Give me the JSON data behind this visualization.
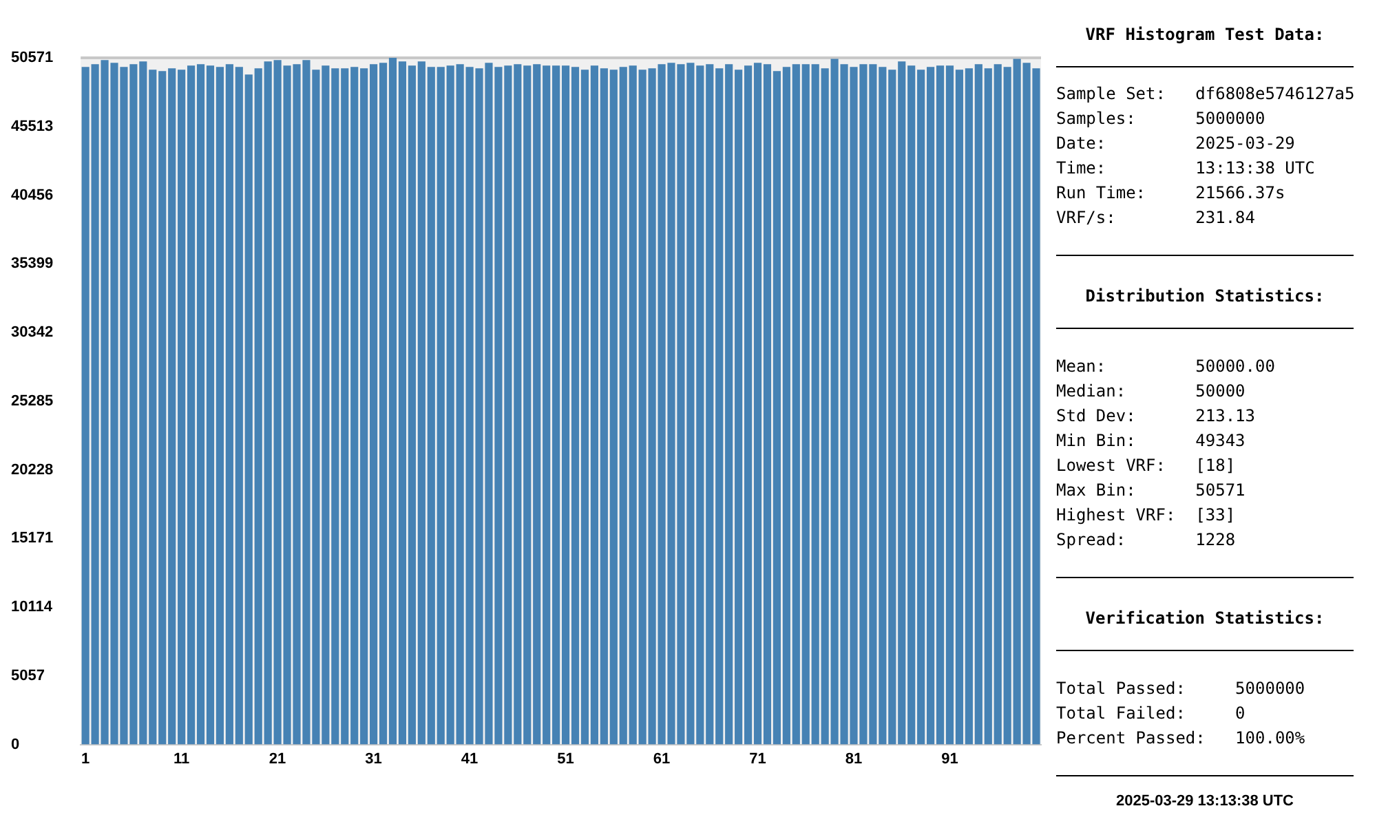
{
  "chart_data": {
    "type": "bar",
    "title": "VRF Histogram Test Data:",
    "categories": [
      "1",
      null,
      null,
      null,
      null,
      null,
      null,
      null,
      null,
      null,
      "11",
      null,
      null,
      null,
      null,
      null,
      null,
      null,
      null,
      null,
      "21",
      null,
      null,
      null,
      null,
      null,
      null,
      null,
      null,
      null,
      "31",
      null,
      null,
      null,
      null,
      null,
      null,
      null,
      null,
      null,
      "41",
      null,
      null,
      null,
      null,
      null,
      null,
      null,
      null,
      null,
      "51",
      null,
      null,
      null,
      null,
      null,
      null,
      null,
      null,
      null,
      "61",
      null,
      null,
      null,
      null,
      null,
      null,
      null,
      null,
      null,
      "71",
      null,
      null,
      null,
      null,
      null,
      null,
      null,
      null,
      null,
      "81",
      null,
      null,
      null,
      null,
      null,
      null,
      null,
      null,
      null,
      "91",
      null,
      null,
      null,
      null,
      null,
      null,
      null,
      null,
      null
    ],
    "values": [
      49900,
      50100,
      50400,
      50200,
      49900,
      50100,
      50300,
      49700,
      49600,
      49800,
      49700,
      50000,
      50100,
      50000,
      49900,
      50100,
      49900,
      49343,
      49800,
      50300,
      50400,
      50000,
      50100,
      50400,
      49700,
      50000,
      49800,
      49800,
      49900,
      49800,
      50100,
      50200,
      50571,
      50300,
      50000,
      50300,
      49900,
      49900,
      50000,
      50100,
      49900,
      49800,
      50200,
      49900,
      50000,
      50100,
      50000,
      50100,
      50000,
      50000,
      50000,
      49900,
      49700,
      50000,
      49800,
      49700,
      49900,
      50000,
      49700,
      49800,
      50100,
      50200,
      50100,
      50200,
      50000,
      50100,
      49800,
      50100,
      49700,
      50000,
      50200,
      50100,
      49600,
      49900,
      50100,
      50100,
      50100,
      49800,
      50500,
      50100,
      49900,
      50100,
      50100,
      49900,
      49700,
      50300,
      50000,
      49700,
      49900,
      50000,
      50000,
      49700,
      49800,
      50100,
      49800,
      50100,
      49900,
      50500,
      50200,
      49800
    ],
    "color": "#4682b4",
    "ylim": [
      0,
      50571
    ],
    "yticks": [
      0,
      5057,
      10114,
      15171,
      20228,
      25285,
      30342,
      35399,
      40456,
      45513,
      50571
    ],
    "grid": false,
    "legend": false,
    "annotations": [
      "Sample Set:   df6808e5746127a5",
      "Samples:      5000000",
      "Date:         2025-03-29",
      "Time:         13:13:38 UTC",
      "Run Time:     21566.37s",
      "VRF/s:        231.84",
      "Distribution Statistics:",
      "Mean:         50000.00",
      "Median:       50000",
      "Std Dev:      213.13",
      "Min Bin:      49343",
      "Lowest VRF:   [18]",
      "Max Bin:      50571",
      "Highest VRF:  [33]",
      "Spread:       1228",
      "Verification Statistics:",
      "Total Passed:     5000000",
      "Total Failed:     0",
      "Percent Passed:   100.00%",
      "2025-03-29 13:13:38 UTC"
    ]
  }
}
